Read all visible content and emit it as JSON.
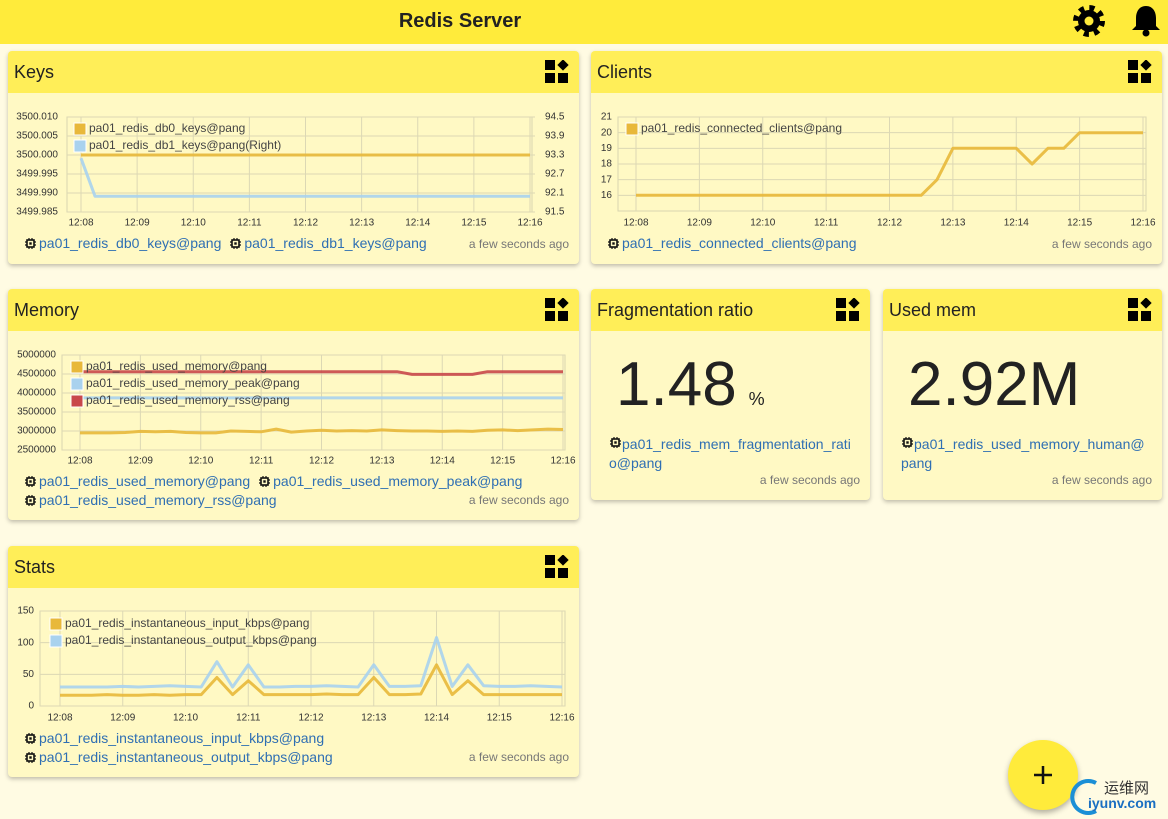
{
  "header": {
    "title": "Redis Server"
  },
  "chart_data": [
    {
      "type": "line",
      "title": "Keys",
      "categories": [
        "12:08",
        null,
        null,
        null,
        "12:09",
        null,
        null,
        null,
        "12:10",
        null,
        null,
        null,
        "12:11",
        null,
        null,
        null,
        "12:12",
        null,
        null,
        null,
        "12:13",
        null,
        null,
        null,
        "12:14",
        null,
        null,
        null,
        "12:15",
        null,
        null,
        null,
        "12:16"
      ],
      "ylim": [
        3499.985,
        3500.01
      ],
      "yticks": [
        {
          "value": 3500.01,
          "label": "3500.010"
        },
        3500.005,
        {
          "value": 3500,
          "label": "3500.000"
        },
        3499.995,
        {
          "value": 3499.99,
          "label": "3499.990"
        },
        3499.985
      ],
      "y2lim": [
        91.5,
        94.5
      ],
      "y2ticks": [
        94.5,
        93.9,
        93.3,
        92.7,
        92.1,
        91.5
      ],
      "grid": true,
      "series": [
        {
          "name": "pa01_redis_db0_keys@pang",
          "color": "#e8b83a",
          "values": [
            3500,
            3500,
            3500,
            3500,
            3500,
            3500,
            3500,
            3500,
            3500,
            3500,
            3500,
            3500,
            3500,
            3500,
            3500,
            3500,
            3500,
            3500,
            3500,
            3500,
            3500,
            3500,
            3500,
            3500,
            3500,
            3500,
            3500,
            3500,
            3500,
            3500,
            3500,
            3500,
            3500
          ]
        },
        {
          "name": "pa01_redis_db1_keys@pang(Right)",
          "color": "#a9d2ee",
          "axis": "y2",
          "values": [
            93.2,
            92,
            92,
            92,
            92,
            92,
            92,
            92,
            92,
            92,
            92,
            92,
            92,
            92,
            92,
            92,
            92,
            92,
            92,
            92,
            92,
            92,
            92,
            92,
            92,
            92,
            92,
            92,
            92,
            92,
            92,
            92,
            92
          ]
        }
      ],
      "links": [
        "pa01_redis_db0_keys@pang",
        "pa01_redis_db1_keys@pang"
      ],
      "updated": "a few seconds ago"
    },
    {
      "type": "line",
      "title": "Clients",
      "categories": [
        "12:08",
        null,
        null,
        null,
        "12:09",
        null,
        null,
        null,
        "12:10",
        null,
        null,
        null,
        "12:11",
        null,
        null,
        null,
        "12:12",
        null,
        null,
        null,
        "12:13",
        null,
        null,
        null,
        "12:14",
        null,
        null,
        null,
        "12:15",
        null,
        null,
        null,
        "12:16"
      ],
      "ylim": [
        15,
        21
      ],
      "yticks": [
        21,
        20,
        19,
        18,
        17,
        16
      ],
      "grid": true,
      "series": [
        {
          "name": "pa01_redis_connected_clients@pang",
          "color": "#e8b83a",
          "values": [
            16,
            16,
            16,
            16,
            16,
            16,
            16,
            16,
            16,
            16,
            16,
            16,
            16,
            16,
            16,
            16,
            16,
            16,
            16,
            17,
            19,
            19,
            19,
            19,
            19,
            18,
            19,
            19,
            20,
            20,
            20,
            20,
            20
          ]
        }
      ],
      "links": [
        "pa01_redis_connected_clients@pang"
      ],
      "updated": "a few seconds ago"
    },
    {
      "type": "line",
      "title": "Memory",
      "categories": [
        "12:08",
        null,
        null,
        null,
        "12:09",
        null,
        null,
        null,
        "12:10",
        null,
        null,
        null,
        "12:11",
        null,
        null,
        null,
        "12:12",
        null,
        null,
        null,
        "12:13",
        null,
        null,
        null,
        "12:14",
        null,
        null,
        null,
        "12:15",
        null,
        null,
        null,
        "12:16"
      ],
      "ylim": [
        2500000,
        5000000
      ],
      "yticks": [
        5000000,
        4500000,
        4000000,
        3500000,
        3000000,
        2500000
      ],
      "grid": true,
      "series": [
        {
          "name": "pa01_redis_used_memory@pang",
          "color": "#e8b83a",
          "values": [
            2950000,
            2950000,
            2950000,
            2960000,
            2990000,
            2980000,
            2990000,
            2960000,
            2950000,
            2950000,
            3000000,
            2990000,
            2980000,
            3050000,
            2970000,
            3000000,
            3020000,
            3000000,
            3010000,
            3000000,
            3030000,
            3010000,
            3000000,
            3000000,
            2990000,
            3000000,
            2990000,
            3020000,
            3030000,
            3010000,
            3030000,
            3050000,
            3040000
          ]
        },
        {
          "name": "pa01_redis_used_memory_peak@pang",
          "color": "#a9d2ee",
          "values": [
            3870000,
            3870000,
            3870000,
            3870000,
            3870000,
            3870000,
            3870000,
            3870000,
            3870000,
            3870000,
            3870000,
            3870000,
            3870000,
            3870000,
            3870000,
            3870000,
            3870000,
            3870000,
            3870000,
            3870000,
            3870000,
            3870000,
            3870000,
            3870000,
            3870000,
            3870000,
            3870000,
            3870000,
            3870000,
            3870000,
            3870000,
            3870000,
            3870000
          ]
        },
        {
          "name": "pa01_redis_used_memory_rss@pang",
          "color": "#c9484a",
          "values": [
            4560000,
            4560000,
            4560000,
            4560000,
            4560000,
            4560000,
            4560000,
            4560000,
            4560000,
            4560000,
            4560000,
            4560000,
            4560000,
            4560000,
            4560000,
            4560000,
            4560000,
            4560000,
            4560000,
            4560000,
            4560000,
            4560000,
            4490000,
            4490000,
            4490000,
            4490000,
            4490000,
            4560000,
            4560000,
            4560000,
            4560000,
            4560000,
            4560000
          ]
        }
      ],
      "links": [
        "pa01_redis_used_memory@pang",
        "pa01_redis_used_memory_peak@pang",
        "pa01_redis_used_memory_rss@pang"
      ],
      "updated": "a few seconds ago"
    },
    {
      "type": "line",
      "title": "Stats",
      "categories": [
        "12:08",
        null,
        null,
        null,
        "12:09",
        null,
        null,
        null,
        "12:10",
        null,
        null,
        null,
        "12:11",
        null,
        null,
        null,
        "12:12",
        null,
        null,
        null,
        "12:13",
        null,
        null,
        null,
        "12:14",
        null,
        null,
        null,
        "12:15",
        null,
        null,
        null,
        "12:16"
      ],
      "ylim": [
        0,
        150
      ],
      "yticks": [
        150,
        100,
        50,
        0
      ],
      "grid": true,
      "series": [
        {
          "name": "pa01_redis_instantaneous_input_kbps@pang",
          "color": "#e8b83a",
          "values": [
            17,
            17,
            17,
            18,
            17,
            17,
            18,
            17,
            18,
            18,
            45,
            18,
            40,
            18,
            18,
            18,
            18,
            19,
            18,
            18,
            45,
            18,
            18,
            19,
            65,
            18,
            40,
            18,
            18,
            18,
            18,
            18,
            18
          ]
        },
        {
          "name": "pa01_redis_instantaneous_output_kbps@pang",
          "color": "#a9d2ee",
          "values": [
            30,
            30,
            30,
            30,
            31,
            30,
            31,
            32,
            31,
            30,
            70,
            30,
            65,
            30,
            30,
            31,
            31,
            32,
            31,
            30,
            65,
            31,
            31,
            32,
            108,
            31,
            65,
            32,
            31,
            31,
            32,
            31,
            30
          ]
        }
      ],
      "links": [
        "pa01_redis_instantaneous_input_kbps@pang",
        "pa01_redis_instantaneous_output_kbps@pang"
      ],
      "updated": "a few seconds ago"
    }
  ],
  "stats": [
    {
      "title": "Fragmentation ratio",
      "value": 1.48,
      "unit": "%",
      "link": "pa01_redis_mem_fragmentation_ratio@pang",
      "updated": "a few seconds ago"
    },
    {
      "title": "Used mem",
      "value": "2.92M",
      "link": "pa01_redis_used_memory_human@pang",
      "updated": "a few seconds ago"
    }
  ],
  "watermark": {
    "name": "运维网",
    "site": "iyunv.com"
  }
}
